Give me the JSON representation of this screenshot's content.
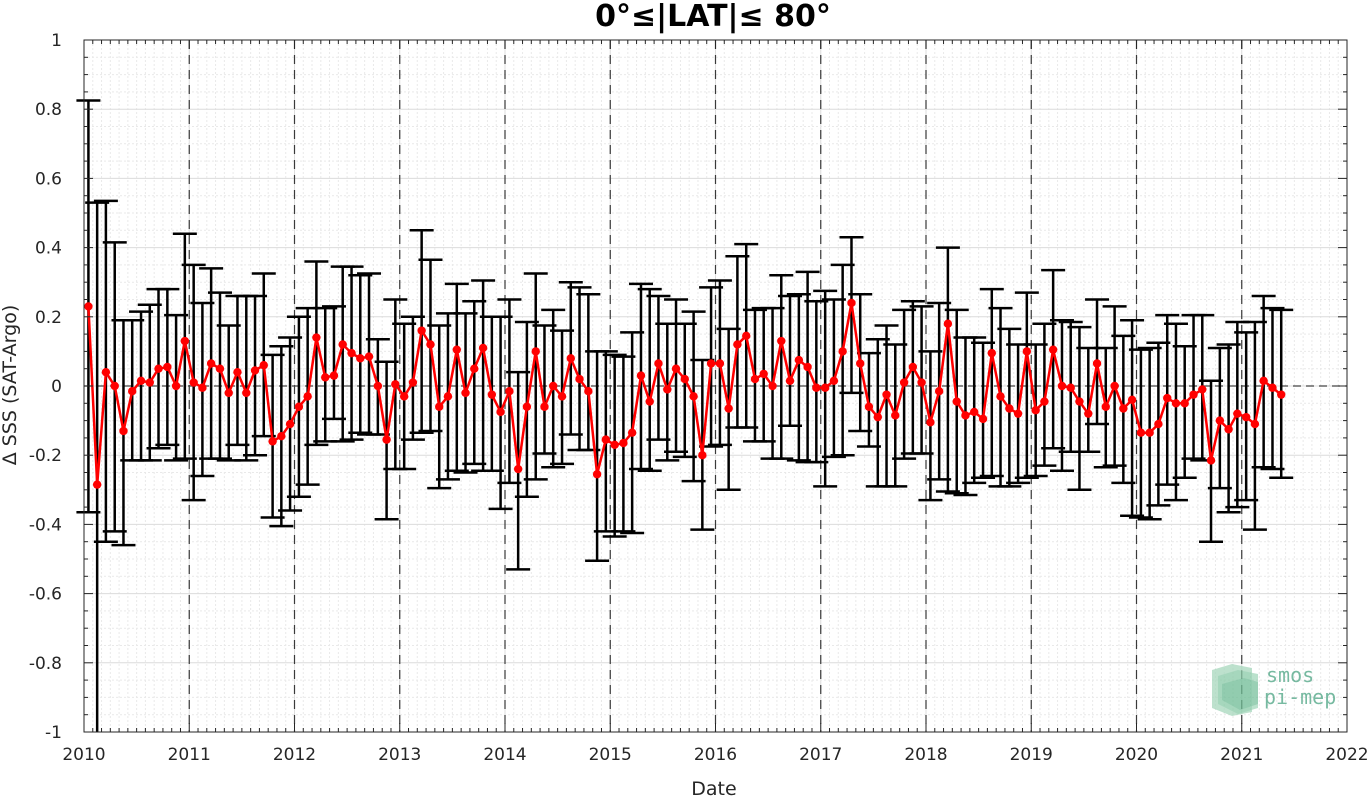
{
  "chart_data": {
    "type": "line",
    "title": "0°≤|LAT|≤ 80°",
    "xlabel": "Date",
    "ylabel": "Δ SSS (SAT-Argo)",
    "xlim": [
      2010,
      2022
    ],
    "ylim": [
      -1,
      1
    ],
    "x_ticks": [
      2010,
      2011,
      2012,
      2013,
      2014,
      2015,
      2016,
      2017,
      2018,
      2019,
      2020,
      2021,
      2022
    ],
    "x_tick_labels": [
      "2010",
      "2011",
      "2012",
      "2013",
      "2014",
      "2015",
      "2016",
      "2017",
      "2018",
      "2019",
      "2020",
      "2021",
      "2022"
    ],
    "y_ticks": [
      -1,
      -0.8,
      -0.6,
      -0.4,
      -0.2,
      0,
      0.2,
      0.4,
      0.6,
      0.8,
      1
    ],
    "y_tick_labels": [
      "-1",
      "-0.8",
      "-0.6",
      "-0.4",
      "-0.2",
      "0",
      "0.2",
      "0.4",
      "0.6",
      "0.8",
      "1"
    ],
    "grid": true,
    "reference_line_y": 0,
    "vertical_dashed_lines_at": [
      2011,
      2012,
      2013,
      2014,
      2015,
      2016,
      2017,
      2018,
      2019,
      2020,
      2021
    ],
    "series": [
      {
        "color": "#ff0000",
        "errorbar_color": "#000000",
        "x": [
          2010.042,
          2010.125,
          2010.208,
          2010.292,
          2010.375,
          2010.458,
          2010.542,
          2010.625,
          2010.708,
          2010.792,
          2010.875,
          2010.958,
          2011.042,
          2011.125,
          2011.208,
          2011.292,
          2011.375,
          2011.458,
          2011.542,
          2011.625,
          2011.708,
          2011.792,
          2011.875,
          2011.958,
          2012.042,
          2012.125,
          2012.208,
          2012.292,
          2012.375,
          2012.458,
          2012.542,
          2012.625,
          2012.708,
          2012.792,
          2012.875,
          2012.958,
          2013.042,
          2013.125,
          2013.208,
          2013.292,
          2013.375,
          2013.458,
          2013.542,
          2013.625,
          2013.708,
          2013.792,
          2013.875,
          2013.958,
          2014.042,
          2014.125,
          2014.208,
          2014.292,
          2014.375,
          2014.458,
          2014.542,
          2014.625,
          2014.708,
          2014.792,
          2014.875,
          2014.958,
          2015.042,
          2015.125,
          2015.208,
          2015.292,
          2015.375,
          2015.458,
          2015.542,
          2015.625,
          2015.708,
          2015.792,
          2015.875,
          2015.958,
          2016.042,
          2016.125,
          2016.208,
          2016.292,
          2016.375,
          2016.458,
          2016.542,
          2016.625,
          2016.708,
          2016.792,
          2016.875,
          2016.958,
          2017.042,
          2017.125,
          2017.208,
          2017.292,
          2017.375,
          2017.458,
          2017.542,
          2017.625,
          2017.708,
          2017.792,
          2017.875,
          2017.958,
          2018.042,
          2018.125,
          2018.208,
          2018.292,
          2018.375,
          2018.458,
          2018.542,
          2018.625,
          2018.708,
          2018.792,
          2018.875,
          2018.958,
          2019.042,
          2019.125,
          2019.208,
          2019.292,
          2019.375,
          2019.458,
          2019.542,
          2019.625,
          2019.708,
          2019.792,
          2019.875,
          2019.958,
          2020.042,
          2020.125,
          2020.208,
          2020.292,
          2020.375,
          2020.458,
          2020.542,
          2020.625,
          2020.708,
          2020.792,
          2020.875,
          2020.958,
          2021.042,
          2021.125,
          2021.208,
          2021.292,
          2021.375
        ],
        "y": [
          0.23,
          -0.285,
          0.04,
          0.0,
          -0.13,
          -0.015,
          0.015,
          0.01,
          0.05,
          0.055,
          0.0,
          0.13,
          0.01,
          -0.005,
          0.065,
          0.05,
          -0.02,
          0.04,
          -0.02,
          0.045,
          0.06,
          -0.16,
          -0.145,
          -0.11,
          -0.06,
          -0.03,
          0.14,
          0.025,
          0.03,
          0.12,
          0.095,
          0.08,
          0.085,
          0.0,
          -0.155,
          0.005,
          -0.03,
          0.01,
          0.16,
          0.12,
          -0.06,
          -0.03,
          0.105,
          -0.02,
          0.05,
          0.11,
          -0.025,
          -0.075,
          -0.015,
          -0.24,
          -0.06,
          0.1,
          -0.06,
          0.0,
          -0.03,
          0.08,
          0.02,
          -0.015,
          -0.255,
          -0.155,
          -0.17,
          -0.165,
          -0.135,
          0.03,
          -0.045,
          0.065,
          -0.01,
          0.05,
          0.02,
          -0.03,
          -0.2,
          0.065,
          0.065,
          -0.065,
          0.12,
          0.145,
          0.02,
          0.035,
          0.0,
          0.13,
          0.015,
          0.075,
          0.055,
          -0.005,
          -0.005,
          0.015,
          0.1,
          0.24,
          0.065,
          -0.06,
          -0.09,
          -0.025,
          -0.085,
          0.01,
          0.055,
          0.01,
          -0.105,
          -0.015,
          0.18,
          -0.045,
          -0.085,
          -0.075,
          -0.095,
          0.095,
          -0.03,
          -0.065,
          -0.08,
          0.1,
          -0.07,
          -0.045,
          0.105,
          0.0,
          -0.005,
          -0.045,
          -0.08,
          0.065,
          -0.06,
          0.0,
          -0.065,
          -0.04,
          -0.135,
          -0.135,
          -0.11,
          -0.035,
          -0.05,
          -0.05,
          -0.025,
          -0.01,
          -0.215,
          -0.1,
          -0.125,
          -0.08,
          -0.09,
          -0.11,
          0.015,
          -0.005,
          -0.025
        ],
        "lower": [
          -0.365,
          -1.0,
          -0.45,
          -0.42,
          -0.46,
          -0.215,
          -0.215,
          -0.215,
          -0.18,
          -0.17,
          -0.215,
          -0.21,
          -0.33,
          -0.26,
          -0.21,
          -0.21,
          -0.215,
          -0.17,
          -0.215,
          -0.2,
          -0.145,
          -0.38,
          -0.405,
          -0.36,
          -0.32,
          -0.285,
          -0.17,
          -0.16,
          -0.095,
          -0.16,
          -0.155,
          -0.135,
          -0.14,
          -0.14,
          -0.385,
          -0.24,
          -0.24,
          -0.155,
          -0.135,
          -0.13,
          -0.295,
          -0.27,
          -0.245,
          -0.25,
          -0.225,
          -0.245,
          -0.245,
          -0.355,
          -0.28,
          -0.53,
          -0.32,
          -0.27,
          -0.195,
          -0.235,
          -0.225,
          -0.14,
          -0.185,
          -0.185,
          -0.505,
          -0.42,
          -0.435,
          -0.42,
          -0.425,
          -0.24,
          -0.245,
          -0.155,
          -0.215,
          -0.19,
          -0.205,
          -0.275,
          -0.415,
          -0.175,
          -0.17,
          -0.3,
          -0.12,
          -0.12,
          -0.16,
          -0.16,
          -0.21,
          -0.21,
          -0.115,
          -0.215,
          -0.22,
          -0.22,
          -0.29,
          -0.205,
          -0.2,
          -0.02,
          -0.13,
          -0.175,
          -0.29,
          -0.29,
          -0.29,
          -0.21,
          -0.195,
          -0.195,
          -0.33,
          -0.27,
          -0.305,
          -0.31,
          -0.315,
          -0.28,
          -0.265,
          -0.26,
          -0.29,
          -0.29,
          -0.28,
          -0.265,
          -0.26,
          -0.23,
          -0.18,
          -0.245,
          -0.19,
          -0.3,
          -0.19,
          -0.11,
          -0.235,
          -0.23,
          -0.28,
          -0.375,
          -0.38,
          -0.385,
          -0.345,
          -0.285,
          -0.33,
          -0.265,
          -0.21,
          -0.215,
          -0.45,
          -0.295,
          -0.365,
          -0.35,
          -0.33,
          -0.415,
          -0.235,
          -0.24,
          -0.265
        ],
        "upper": [
          0.825,
          0.53,
          0.535,
          0.415,
          0.19,
          0.19,
          0.215,
          0.235,
          0.28,
          0.28,
          0.205,
          0.44,
          0.35,
          0.24,
          0.34,
          0.27,
          0.175,
          0.26,
          0.26,
          0.26,
          0.325,
          0.09,
          0.115,
          0.14,
          0.2,
          0.225,
          0.36,
          0.225,
          0.23,
          0.345,
          0.345,
          0.32,
          0.325,
          0.135,
          0.07,
          0.25,
          0.18,
          0.2,
          0.45,
          0.365,
          0.175,
          0.21,
          0.295,
          0.21,
          0.245,
          0.305,
          0.2,
          0.2,
          0.25,
          0.04,
          0.185,
          0.325,
          0.175,
          0.22,
          0.16,
          0.3,
          0.285,
          0.265,
          0.1,
          0.1,
          0.09,
          0.085,
          0.155,
          0.295,
          0.28,
          0.26,
          0.18,
          0.25,
          0.18,
          0.215,
          0.075,
          0.285,
          0.305,
          0.165,
          0.375,
          0.41,
          0.22,
          0.225,
          0.225,
          0.32,
          0.26,
          0.265,
          0.33,
          0.245,
          0.275,
          0.25,
          0.35,
          0.43,
          0.265,
          0.095,
          0.135,
          0.175,
          0.12,
          0.22,
          0.245,
          0.23,
          0.1,
          0.24,
          0.4,
          0.22,
          0.14,
          0.14,
          0.125,
          0.28,
          0.225,
          0.165,
          0.12,
          0.27,
          0.12,
          0.18,
          0.335,
          0.19,
          0.185,
          0.17,
          0.11,
          0.25,
          0.11,
          0.23,
          0.145,
          0.19,
          0.105,
          0.11,
          0.125,
          0.205,
          0.18,
          0.115,
          0.205,
          0.205,
          0.015,
          0.11,
          0.12,
          0.185,
          0.155,
          0.185,
          0.26,
          0.225,
          0.22
        ]
      }
    ]
  },
  "logo": {
    "line1": "smos",
    "line2": "pi-mep"
  }
}
